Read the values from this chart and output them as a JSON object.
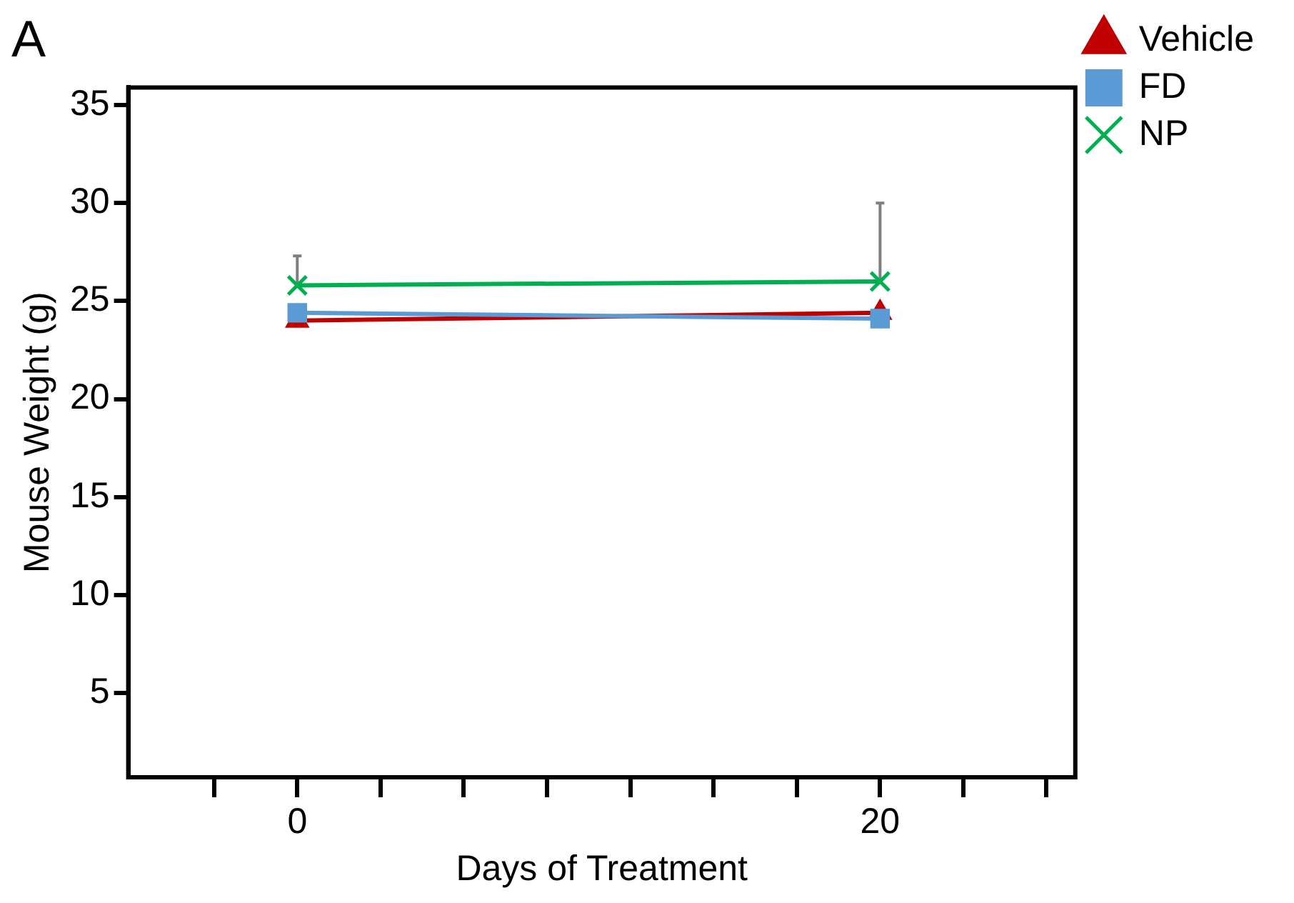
{
  "chart_data": {
    "type": "line",
    "title": "A",
    "xlabel": "Days of Treatment",
    "ylabel": "Mouse Weight (g)",
    "x": [
      0,
      20
    ],
    "series": [
      {
        "name": "Vehicle",
        "color": "#c00000",
        "marker": "triangle",
        "values": [
          24.0,
          24.4
        ]
      },
      {
        "name": "FD",
        "color": "#5b9bd5",
        "marker": "square",
        "values": [
          24.4,
          24.1
        ]
      },
      {
        "name": "NP",
        "color": "#00b050",
        "marker": "cross",
        "values": [
          25.8,
          26.0
        ],
        "errors": [
          [
            25.8,
            27.3
          ],
          [
            26.0,
            30.0
          ]
        ]
      }
    ],
    "xlim": [
      -5.8,
      26.7
    ],
    "xticks": [
      {
        "value": -2.86,
        "label": null
      },
      0,
      {
        "value": 2.86,
        "label": null
      },
      {
        "value": 5.71,
        "label": null
      },
      {
        "value": 8.57,
        "label": null
      },
      {
        "value": 11.43,
        "label": null
      },
      {
        "value": 14.29,
        "label": null
      },
      {
        "value": 17.14,
        "label": null
      },
      20,
      {
        "value": 22.86,
        "label": null
      },
      {
        "value": 25.71,
        "label": null
      }
    ],
    "ylim": [
      0.7,
      35.9
    ],
    "yticks": [
      5,
      10,
      15,
      20,
      25,
      30,
      35
    ],
    "grid": false,
    "legend": "top right",
    "line_style": "solid"
  }
}
